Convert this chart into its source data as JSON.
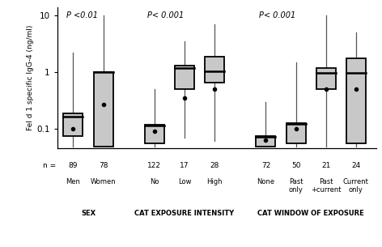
{
  "groups": [
    {
      "label": "SEX",
      "p_value": "P <0.01",
      "boxes": [
        {
          "name": "Men",
          "n": 89,
          "q1": 0.073,
          "median": 0.165,
          "q3": 0.185,
          "mean": 0.1,
          "whisker_low": 0.048,
          "whisker_high": 2.2
        },
        {
          "name": "Women",
          "n": 78,
          "q1": 0.048,
          "median": 1.0,
          "q3": 1.0,
          "mean": 0.27,
          "whisker_low": 0.048,
          "whisker_high": 10.0
        }
      ]
    },
    {
      "label": "CAT EXPOSURE INTENSITY",
      "p_value": "P< 0.001",
      "boxes": [
        {
          "name": "No",
          "n": 122,
          "q1": 0.055,
          "median": 0.115,
          "q3": 0.118,
          "mean": 0.09,
          "whisker_low": 0.048,
          "whisker_high": 0.5
        },
        {
          "name": "Low",
          "n": 17,
          "q1": 0.5,
          "median": 1.2,
          "q3": 1.3,
          "mean": 0.35,
          "whisker_low": 0.07,
          "whisker_high": 3.5
        },
        {
          "name": "High",
          "n": 28,
          "q1": 0.65,
          "median": 1.05,
          "q3": 1.85,
          "mean": 0.5,
          "whisker_low": 0.06,
          "whisker_high": 7.0
        }
      ]
    },
    {
      "label": "CAT WINDOW OF EXPOSURE",
      "p_value": "P< 0.001",
      "boxes": [
        {
          "name": "None",
          "n": 72,
          "q1": 0.048,
          "median": 0.072,
          "q3": 0.075,
          "mean": 0.062,
          "whisker_low": 0.048,
          "whisker_high": 0.3
        },
        {
          "name": "Past\nonly",
          "n": 50,
          "q1": 0.055,
          "median": 0.12,
          "q3": 0.125,
          "mean": 0.1,
          "whisker_low": 0.048,
          "whisker_high": 1.5
        },
        {
          "name": "Past\n+current",
          "n": 21,
          "q1": 0.5,
          "median": 0.98,
          "q3": 1.2,
          "mean": 0.5,
          "whisker_low": 0.048,
          "whisker_high": 10.0
        },
        {
          "name": "Current\nonly",
          "n": 24,
          "q1": 0.055,
          "median": 0.97,
          "q3": 1.75,
          "mean": 0.5,
          "whisker_low": 0.048,
          "whisker_high": 5.0
        }
      ]
    }
  ],
  "ylabel": "Fel d 1 specific IgG-4 (ng/ml)",
  "ylim_log": [
    0.045,
    14
  ],
  "box_color": "#c8c8c8",
  "box_edgecolor": "#000000",
  "background_color": "#ffffff"
}
